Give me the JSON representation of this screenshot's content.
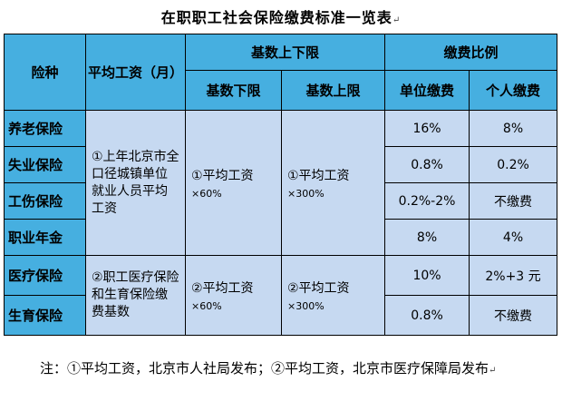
{
  "title": "在职职工社会保险缴费标准一览表",
  "return_mark": "↵",
  "headers": {
    "insurance": "险种",
    "salary": "平均工资（月）",
    "base_range": "基数上下限",
    "base_lower": "基数下限",
    "base_upper": "基数上限",
    "ratio": "缴费比例",
    "unit_pay": "单位缴费",
    "personal_pay": "个人缴费"
  },
  "rows": [
    {
      "name": "养老保险",
      "unit": "16%",
      "personal": "8%"
    },
    {
      "name": "失业保险",
      "unit": "0.8%",
      "personal": "0.2%"
    },
    {
      "name": "工伤保险",
      "unit": "0.2%-2%",
      "personal": "不缴费"
    },
    {
      "name": "职业年金",
      "unit": "8%",
      "personal": "4%"
    },
    {
      "name": "医疗保险",
      "unit": "10%",
      "personal": "2%+3 元"
    },
    {
      "name": "生育保险",
      "unit": "0.8%",
      "personal": "不缴费"
    }
  ],
  "group1": {
    "salary": "①上年北京市全口径城镇单位就业人员平均工资",
    "lower_main": "①平均工资",
    "lower_mult": "×60%",
    "upper_main": "①平均工资",
    "upper_mult": "×300%"
  },
  "group2": {
    "salary": "②职工医疗保险和生育保险缴费基数",
    "lower_main": "②平均工资",
    "lower_mult": "×60%",
    "upper_main": "②平均工资",
    "upper_mult": "×300%"
  },
  "note": "注：①平均工资，北京市人社局发布；②平均工资，北京市医疗保障局发布"
}
